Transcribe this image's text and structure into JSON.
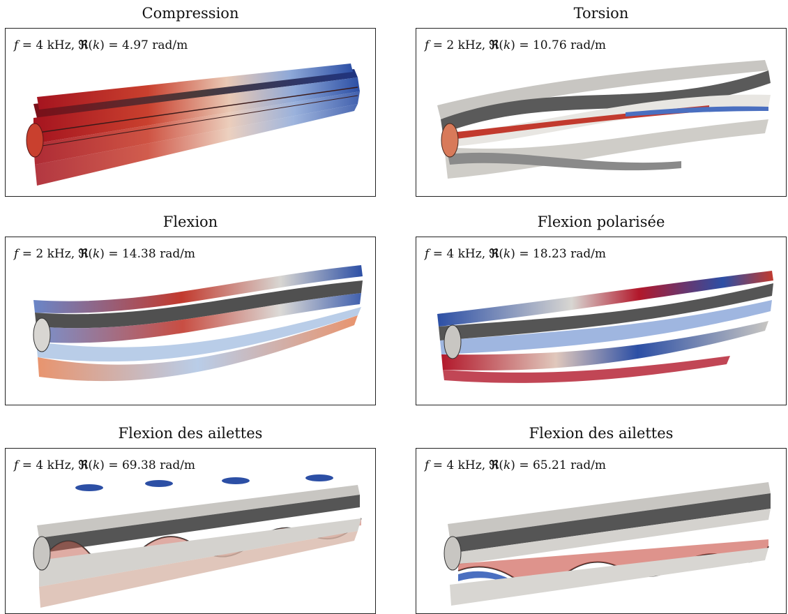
{
  "panels": [
    {
      "title": "Compression",
      "f": "4",
      "k": "4.97",
      "unit_f": "kHz",
      "unit_k": "rad/m"
    },
    {
      "title": "Torsion",
      "f": "2",
      "k": "10.76",
      "unit_f": "kHz",
      "unit_k": "rad/m"
    },
    {
      "title": "Flexion",
      "f": "2",
      "k": "14.38",
      "unit_f": "kHz",
      "unit_k": "rad/m"
    },
    {
      "title": "Flexion polarisée",
      "f": "4",
      "k": "18.23",
      "unit_f": "kHz",
      "unit_k": "rad/m"
    },
    {
      "title": "Flexion des ailettes",
      "f": "4",
      "k": "69.38",
      "unit_f": "kHz",
      "unit_k": "rad/m"
    },
    {
      "title": "Flexion des ailettes",
      "f": "4",
      "k": "65.21",
      "unit_f": "kHz",
      "unit_k": "rad/m"
    }
  ],
  "colors": {
    "red": "#b2182b",
    "blue": "#2c4fa5",
    "grey": "#c8c6c2",
    "dark": "#4a4a4a"
  }
}
